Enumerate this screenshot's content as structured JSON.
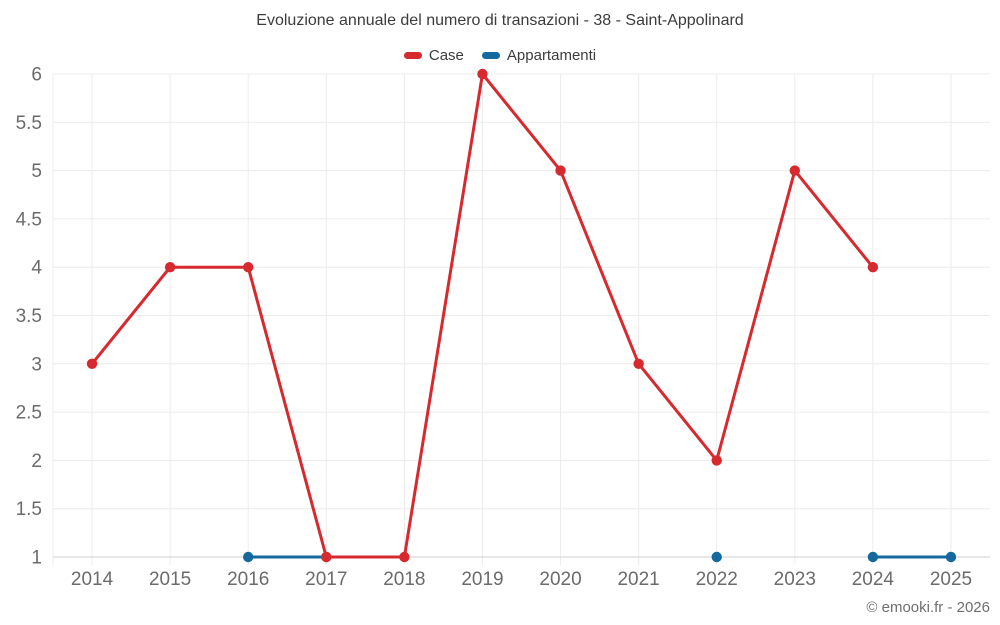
{
  "page": {
    "title": "Evoluzione annuale del numero di transazioni - 38 - Saint-Appolinard",
    "watermark": "© emooki.fr - 2026"
  },
  "legend": {
    "items": [
      {
        "label": "Case",
        "color": "#d62a2f"
      },
      {
        "label": "Appartamenti",
        "color": "#16699e"
      }
    ]
  },
  "chart_data": {
    "type": "line",
    "title": "Evoluzione annuale del numero di transazioni - 38 - Saint-Appolinard",
    "x": [
      2014,
      2015,
      2016,
      2017,
      2018,
      2019,
      2020,
      2021,
      2022,
      2023,
      2024,
      2025
    ],
    "series": [
      {
        "name": "Case",
        "color": "#d62a2f",
        "values": [
          3,
          4,
          4,
          1,
          1,
          6,
          5,
          3,
          2,
          5,
          4,
          null
        ]
      },
      {
        "name": "Appartamenti",
        "color": "#16699e",
        "values": [
          null,
          null,
          1,
          1,
          null,
          null,
          null,
          null,
          1,
          null,
          1,
          1
        ]
      }
    ],
    "ylim": [
      1,
      6
    ],
    "ytick_step": 0.5,
    "xlabel": "",
    "ylabel": "",
    "grid": true,
    "legend_position": "top",
    "colors": {
      "grid_line": "#ececec",
      "axis_line": "#cfcfcf",
      "tick_label": "#6b6b6b"
    }
  }
}
